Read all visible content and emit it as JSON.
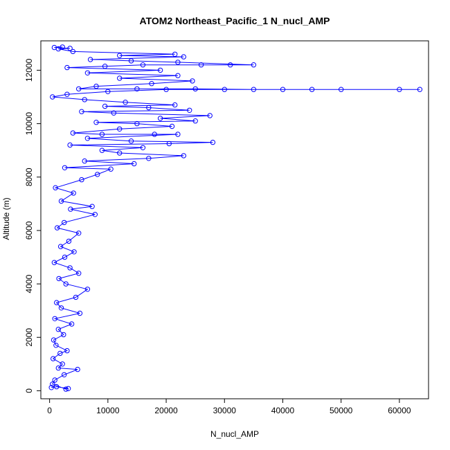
{
  "chart_data": {
    "type": "scatter",
    "title": "ATOM2 Northeast_Pacific_1 N_nucl_AMP",
    "xlabel": "N_nucl_AMP",
    "ylabel": "Altitude (m)",
    "xlim": [
      -1500,
      65000
    ],
    "ylim": [
      -300,
      13100
    ],
    "x_ticks": [
      0,
      10000,
      20000,
      30000,
      40000,
      50000,
      60000
    ],
    "y_ticks": [
      0,
      2000,
      4000,
      6000,
      8000,
      10000,
      12000
    ],
    "x_tick_labels": [
      "0",
      "10000",
      "20000",
      "30000",
      "40000",
      "50000",
      "60000"
    ],
    "y_tick_labels": [
      "0",
      "2000",
      "4000",
      "6000",
      "8000",
      "10000",
      "12000"
    ],
    "marker": "open-circle",
    "connected": true,
    "grid": false,
    "color": "#0000ff",
    "series": [
      {
        "values": [
          [
            300,
            120
          ],
          [
            1200,
            150
          ],
          [
            3200,
            80
          ],
          [
            2800,
            60
          ],
          [
            500,
            250
          ],
          [
            900,
            400
          ],
          [
            2500,
            600
          ],
          [
            4800,
            800
          ],
          [
            1500,
            850
          ],
          [
            2200,
            1000
          ],
          [
            600,
            1200
          ],
          [
            1800,
            1400
          ],
          [
            3000,
            1500
          ],
          [
            1100,
            1700
          ],
          [
            700,
            1900
          ],
          [
            2400,
            2100
          ],
          [
            1500,
            2300
          ],
          [
            3800,
            2500
          ],
          [
            900,
            2700
          ],
          [
            5200,
            2900
          ],
          [
            2000,
            3100
          ],
          [
            1200,
            3300
          ],
          [
            4500,
            3500
          ],
          [
            6500,
            3800
          ],
          [
            2800,
            4000
          ],
          [
            1600,
            4200
          ],
          [
            5000,
            4400
          ],
          [
            3500,
            4600
          ],
          [
            800,
            4800
          ],
          [
            2600,
            5000
          ],
          [
            4200,
            5200
          ],
          [
            1900,
            5400
          ],
          [
            3300,
            5600
          ],
          [
            5000,
            5900
          ],
          [
            1300,
            6100
          ],
          [
            2500,
            6300
          ],
          [
            7800,
            6600
          ],
          [
            3600,
            6800
          ],
          [
            7300,
            6900
          ],
          [
            2000,
            7100
          ],
          [
            4100,
            7400
          ],
          [
            1000,
            7600
          ],
          [
            5500,
            7900
          ],
          [
            8200,
            8100
          ],
          [
            10500,
            8300
          ],
          [
            2600,
            8350
          ],
          [
            14500,
            8500
          ],
          [
            6000,
            8600
          ],
          [
            17000,
            8700
          ],
          [
            23000,
            8800
          ],
          [
            12000,
            8900
          ],
          [
            9000,
            9000
          ],
          [
            16000,
            9100
          ],
          [
            3500,
            9200
          ],
          [
            20500,
            9250
          ],
          [
            28000,
            9300
          ],
          [
            14000,
            9350
          ],
          [
            6500,
            9450
          ],
          [
            22000,
            9600
          ],
          [
            18000,
            9600
          ],
          [
            9000,
            9600
          ],
          [
            4000,
            9650
          ],
          [
            12000,
            9800
          ],
          [
            21000,
            9900
          ],
          [
            15000,
            10000
          ],
          [
            8000,
            10050
          ],
          [
            25000,
            10100
          ],
          [
            19000,
            10200
          ],
          [
            27500,
            10300
          ],
          [
            11000,
            10400
          ],
          [
            5500,
            10450
          ],
          [
            24000,
            10500
          ],
          [
            17000,
            10600
          ],
          [
            9500,
            10650
          ],
          [
            21500,
            10700
          ],
          [
            13000,
            10800
          ],
          [
            6000,
            10900
          ],
          [
            500,
            11000
          ],
          [
            3000,
            11100
          ],
          [
            10000,
            11200
          ],
          [
            20000,
            11280
          ],
          [
            30000,
            11280
          ],
          [
            40000,
            11280
          ],
          [
            50000,
            11280
          ],
          [
            60000,
            11280
          ],
          [
            63500,
            11280
          ],
          [
            45000,
            11280
          ],
          [
            35000,
            11280
          ],
          [
            25000,
            11300
          ],
          [
            15000,
            11300
          ],
          [
            5000,
            11300
          ],
          [
            8000,
            11400
          ],
          [
            17500,
            11500
          ],
          [
            24500,
            11600
          ],
          [
            12000,
            11700
          ],
          [
            22000,
            11800
          ],
          [
            6500,
            11900
          ],
          [
            19000,
            12000
          ],
          [
            3000,
            12100
          ],
          [
            9500,
            12150
          ],
          [
            16000,
            12200
          ],
          [
            26000,
            12200
          ],
          [
            31000,
            12200
          ],
          [
            35000,
            12200
          ],
          [
            22000,
            12300
          ],
          [
            14000,
            12350
          ],
          [
            7000,
            12400
          ],
          [
            23000,
            12500
          ],
          [
            12000,
            12550
          ],
          [
            21500,
            12600
          ],
          [
            4000,
            12700
          ],
          [
            1500,
            12800
          ],
          [
            3500,
            12820
          ],
          [
            800,
            12850
          ],
          [
            2200,
            12870
          ]
        ]
      }
    ]
  }
}
